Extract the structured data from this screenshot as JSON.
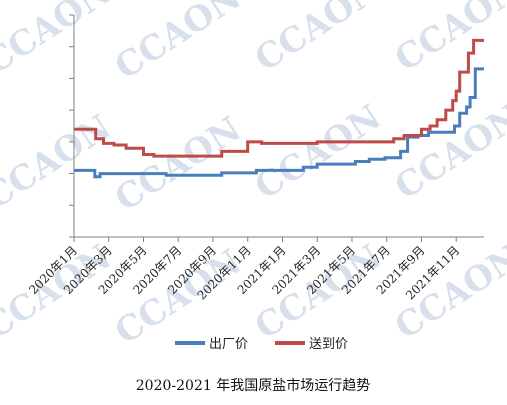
{
  "chart_data": {
    "type": "line",
    "title": "2020-2021 年我国原盐市场运行趋势",
    "watermark": "CCAON",
    "x_tick_labels": [
      "2020年1月",
      "2020年3月",
      "2020年5月",
      "2020年7月",
      "2020年9月",
      "2020年11月",
      "2021年1月",
      "2021年3月",
      "2021年5月",
      "2021年7月",
      "2021年9月",
      "2021年11月"
    ],
    "x_range_months": [
      0,
      23.6
    ],
    "y_range": [
      0,
      7
    ],
    "y_tick_count": 8,
    "y_tick_labels_shown": false,
    "legend_position": "bottom",
    "series": [
      {
        "name": "出厂价",
        "color": "#4a7ebb",
        "points": [
          [
            0,
            2.1
          ],
          [
            1.1,
            2.1
          ],
          [
            1.2,
            1.9
          ],
          [
            1.5,
            2.0
          ],
          [
            5.3,
            1.95
          ],
          [
            6.5,
            1.95
          ],
          [
            8.5,
            2.02
          ],
          [
            10.5,
            2.1
          ],
          [
            13.2,
            2.2
          ],
          [
            14,
            2.3
          ],
          [
            16.2,
            2.38
          ],
          [
            17,
            2.45
          ],
          [
            17.9,
            2.5
          ],
          [
            18.8,
            2.7
          ],
          [
            19.2,
            3.15
          ],
          [
            19.8,
            3.2
          ],
          [
            20.4,
            3.3
          ],
          [
            21.5,
            3.3
          ],
          [
            21.9,
            3.5
          ],
          [
            22.2,
            3.9
          ],
          [
            22.6,
            4.1
          ],
          [
            22.8,
            4.4
          ],
          [
            23.1,
            5.3
          ],
          [
            23.6,
            5.3
          ]
        ]
      },
      {
        "name": "送到价",
        "color": "#be4b48",
        "points": [
          [
            0,
            3.4
          ],
          [
            1.05,
            3.4
          ],
          [
            1.25,
            3.1
          ],
          [
            1.7,
            2.95
          ],
          [
            2.3,
            2.9
          ],
          [
            3,
            2.8
          ],
          [
            4,
            2.6
          ],
          [
            4.6,
            2.55
          ],
          [
            6.5,
            2.55
          ],
          [
            8.5,
            2.7
          ],
          [
            10,
            3.0
          ],
          [
            10.8,
            2.95
          ],
          [
            13.5,
            2.95
          ],
          [
            14,
            3.0
          ],
          [
            17.7,
            3.0
          ],
          [
            18.4,
            3.1
          ],
          [
            19,
            3.2
          ],
          [
            20,
            3.4
          ],
          [
            20.5,
            3.5
          ],
          [
            20.9,
            3.7
          ],
          [
            21.4,
            4.0
          ],
          [
            21.8,
            4.3
          ],
          [
            22,
            4.6
          ],
          [
            22.2,
            5.2
          ],
          [
            22.7,
            5.8
          ],
          [
            23.0,
            6.2
          ],
          [
            23.6,
            6.2
          ]
        ]
      }
    ]
  }
}
